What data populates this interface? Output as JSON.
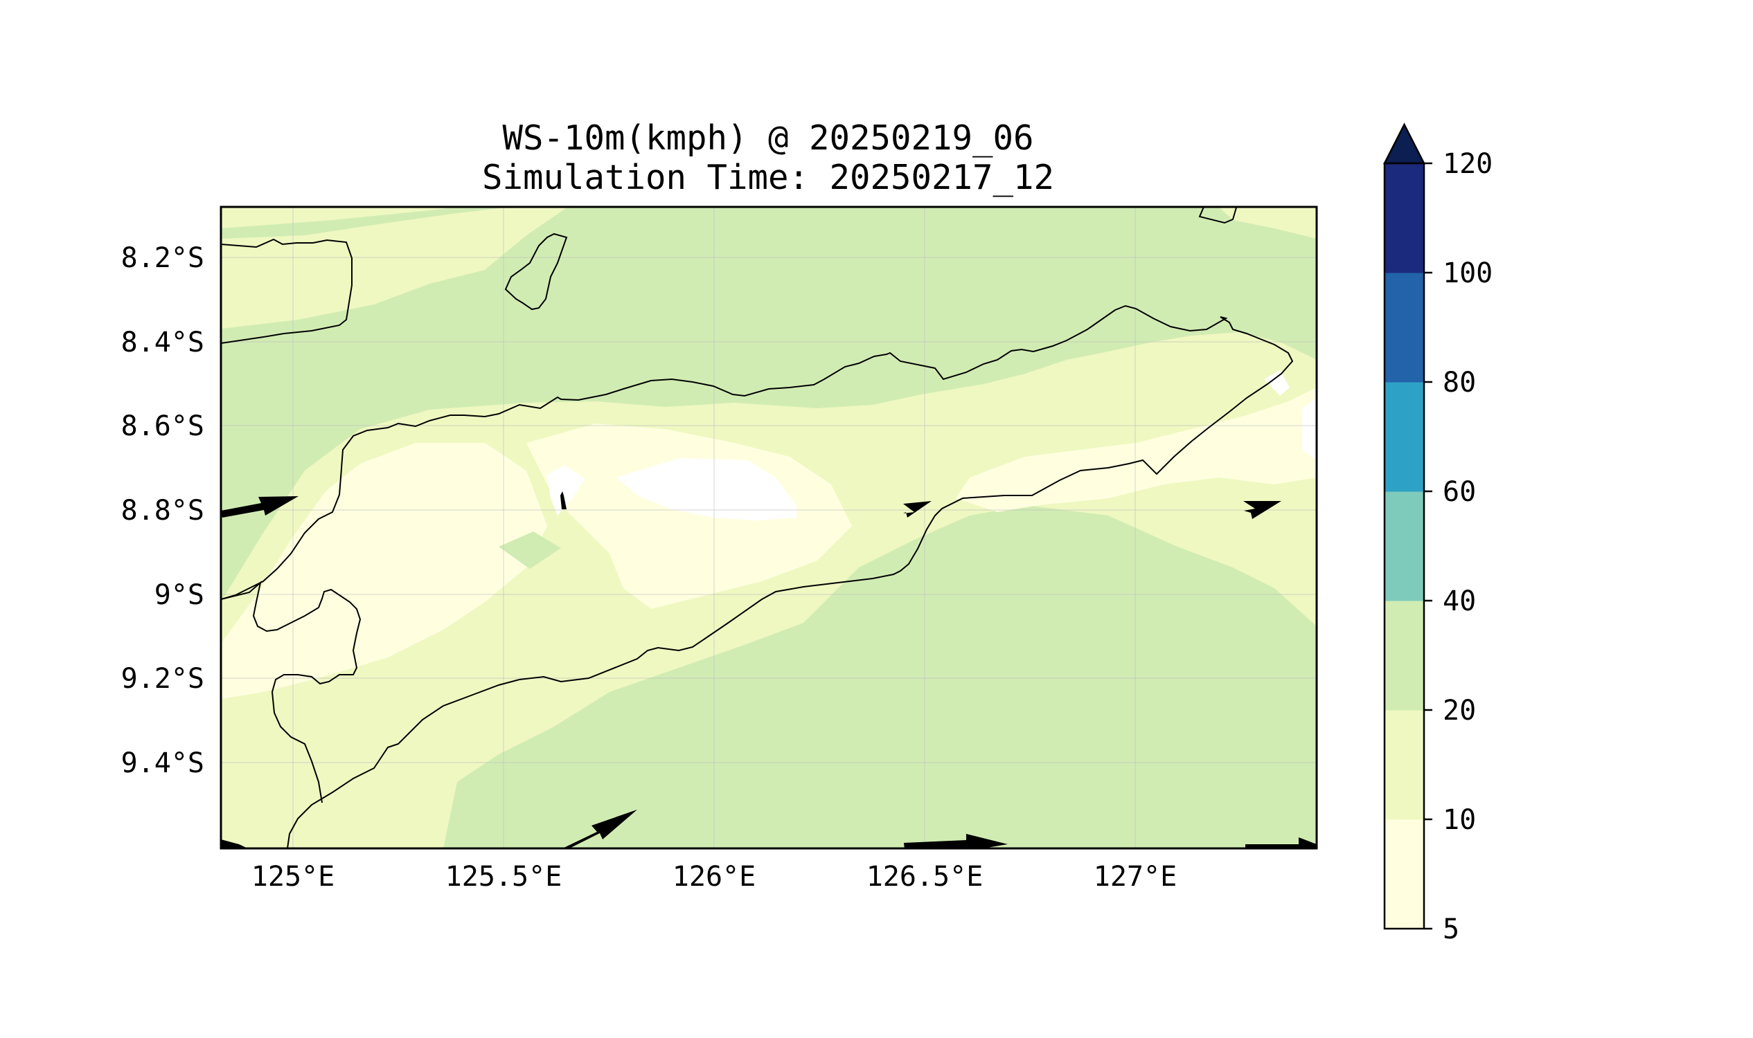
{
  "figure": {
    "title_line1": "WS-10m(kmph) @ 20250219_06",
    "title_line2": "Simulation Time: 20250217_12"
  },
  "map": {
    "lat_ticks": [
      "8.2°S",
      "8.4°S",
      "8.6°S",
      "8.8°S",
      "9°S",
      "9.2°S",
      "9.4°S"
    ],
    "lon_ticks": [
      "125°E",
      "125.5°E",
      "126°E",
      "126.5°E",
      "127°E"
    ],
    "gridlines": true,
    "fill_colors": {
      "5-10": "#ffffe0",
      "10-20": "#eff8c1",
      "20-40": "#d1ecb3",
      "above": "#ffffff"
    }
  },
  "colorbar": {
    "extend": "max",
    "levels": [
      {
        "label": "5",
        "color": "#ffffe0"
      },
      {
        "label": "10",
        "color": "#eff8c1"
      },
      {
        "label": "20",
        "color": "#d1ecb3"
      },
      {
        "label": "40",
        "color": "#7ecbbb"
      },
      {
        "label": "60",
        "color": "#2ea2c6"
      },
      {
        "label": "80",
        "color": "#2263a9"
      },
      {
        "label": "100",
        "color": "#1b2a7c"
      },
      {
        "label": "120",
        "color": "#0b1f52"
      }
    ]
  },
  "wind_vectors": [
    {
      "name": "wind-arrow-west-mid",
      "u": 1.0,
      "v": 0.2
    },
    {
      "name": "wind-arrow-central-mid",
      "u": 0.0,
      "v": 0.4
    },
    {
      "name": "wind-arrow-east-mid",
      "u": 0.6,
      "v": 0.3
    },
    {
      "name": "wind-arrow-far-east-mid",
      "u": 0.8,
      "v": 0.4
    },
    {
      "name": "wind-arrow-south-1",
      "u": 1.0,
      "v": 0.5
    },
    {
      "name": "wind-arrow-south-2",
      "u": 1.0,
      "v": 0.05
    },
    {
      "name": "wind-arrow-south-3",
      "u": 1.0,
      "v": 0.0
    },
    {
      "name": "wind-arrow-sw-corner",
      "u": 1.0,
      "v": -0.3
    }
  ]
}
